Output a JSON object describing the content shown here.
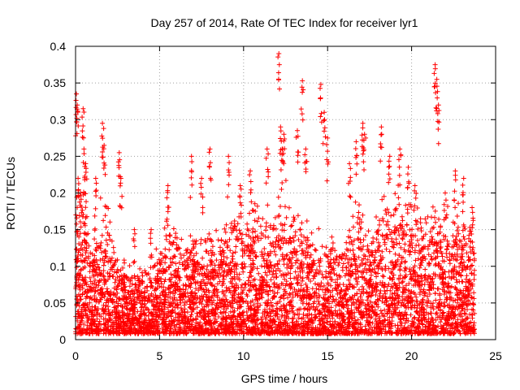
{
  "chart_data": {
    "type": "scatter",
    "title": "Day 257 of 2014, Rate Of TEC Index for receiver lyr1",
    "xlabel": "GPS time / hours",
    "ylabel": "ROTI / TECUs",
    "xlim": [
      0,
      25
    ],
    "ylim": [
      0,
      0.4
    ],
    "xticks": [
      0,
      5,
      10,
      15,
      20,
      25
    ],
    "yticks": [
      0,
      0.05,
      0.1,
      0.15,
      0.2,
      0.25,
      0.3,
      0.35,
      0.4
    ],
    "xtick_labels": [
      "0",
      "5",
      "10",
      "15",
      "20",
      "25"
    ],
    "ytick_labels": [
      "0",
      "0.05",
      "0.1",
      "0.15",
      "0.2",
      "0.25",
      "0.3",
      "0.35",
      "0.4"
    ],
    "grid": true,
    "grid_style": "dotted",
    "marker": "+",
    "marker_color": "#ff0000",
    "series": [
      {
        "x": [
          0.05,
          0.1,
          0.15,
          0.2,
          0.3,
          0.45,
          0.5,
          0.6,
          1.2,
          1.6,
          1.7,
          2.6,
          2.7,
          3.5,
          4.5,
          5.5,
          6.9,
          7.5,
          8.0,
          9.1,
          9.8,
          10.4,
          11.4,
          12.1,
          12.2,
          12.3,
          12.4,
          13.2,
          13.5,
          13.7,
          14.6,
          14.8,
          15.0,
          16.3,
          16.7,
          17.1,
          17.2,
          18.2,
          18.7,
          19.3,
          19.8,
          20.2,
          21.4,
          21.5,
          21.6,
          22.0,
          22.6,
          23.1,
          23.6
        ],
        "y": [
          0.335,
          0.32,
          0.22,
          0.09,
          0.2,
          0.315,
          0.26,
          0.24,
          0.22,
          0.295,
          0.265,
          0.255,
          0.22,
          0.15,
          0.15,
          0.21,
          0.25,
          0.22,
          0.26,
          0.25,
          0.21,
          0.23,
          0.26,
          0.39,
          0.29,
          0.26,
          0.28,
          0.285,
          0.353,
          0.26,
          0.348,
          0.31,
          0.275,
          0.24,
          0.27,
          0.295,
          0.28,
          0.29,
          0.25,
          0.26,
          0.235,
          0.21,
          0.375,
          0.355,
          0.32,
          0.2,
          0.23,
          0.22,
          0.18
        ]
      }
    ]
  }
}
